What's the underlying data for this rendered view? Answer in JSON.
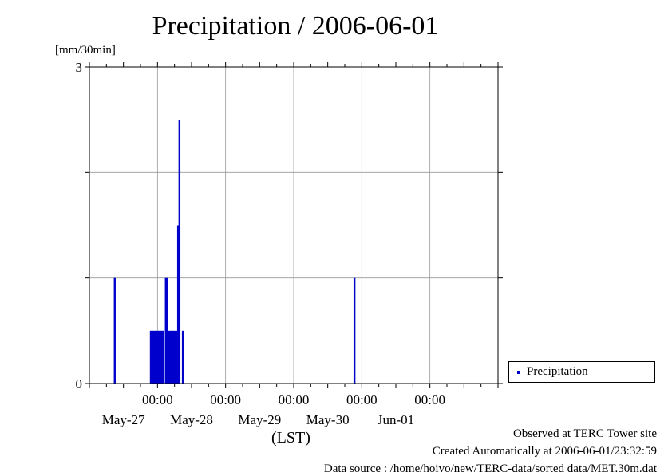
{
  "chart_data": {
    "type": "bar",
    "title": "Precipitation / 2006-06-01",
    "ylabel": "[mm/30min]",
    "xlabel": "(LST)",
    "ylim": [
      0,
      3
    ],
    "y_tick_labels": [
      "0",
      "3"
    ],
    "xlim_days": [
      26.5,
      32.5
    ],
    "x_ticks": [
      {
        "day": 27.5,
        "time": "00:00",
        "date": "May-27"
      },
      {
        "day": 28.5,
        "time": "00:00",
        "date": "May-28"
      },
      {
        "day": 29.5,
        "time": "00:00",
        "date": "May-29"
      },
      {
        "day": 30.5,
        "time": "00:00",
        "date": "May-30"
      },
      {
        "day": 31.5,
        "time": "00:00",
        "date": "Jun-01"
      }
    ],
    "grid": true,
    "legend": {
      "position": "right",
      "entries": [
        "Precipitation"
      ]
    },
    "series": [
      {
        "name": "Precipitation",
        "color": "#0000cc",
        "points": [
          {
            "day": 26.87,
            "value": 1.0
          },
          {
            "day": 27.4,
            "value": 0.5
          },
          {
            "day": 27.42,
            "value": 0.5
          },
          {
            "day": 27.44,
            "value": 0.5
          },
          {
            "day": 27.46,
            "value": 0.5
          },
          {
            "day": 27.48,
            "value": 0.5
          },
          {
            "day": 27.5,
            "value": 0.5
          },
          {
            "day": 27.52,
            "value": 0.5
          },
          {
            "day": 27.54,
            "value": 0.5
          },
          {
            "day": 27.56,
            "value": 0.5
          },
          {
            "day": 27.58,
            "value": 0.5
          },
          {
            "day": 27.62,
            "value": 1.0
          },
          {
            "day": 27.64,
            "value": 1.0
          },
          {
            "day": 27.67,
            "value": 0.5
          },
          {
            "day": 27.69,
            "value": 0.5
          },
          {
            "day": 27.71,
            "value": 0.5
          },
          {
            "day": 27.73,
            "value": 0.5
          },
          {
            "day": 27.75,
            "value": 0.5
          },
          {
            "day": 27.78,
            "value": 0.5
          },
          {
            "day": 27.8,
            "value": 1.5
          },
          {
            "day": 27.82,
            "value": 2.5
          },
          {
            "day": 27.87,
            "value": 0.5
          },
          {
            "day": 30.39,
            "value": 1.0
          }
        ]
      }
    ]
  },
  "footer": {
    "line1": "Observed at TERC Tower site",
    "line2": "Created Automatically at 2006-06-01/23:32:59",
    "line3": "Data source : /home/hoivo/new/TERC-data/sorted  data/MET.30m.dat"
  }
}
